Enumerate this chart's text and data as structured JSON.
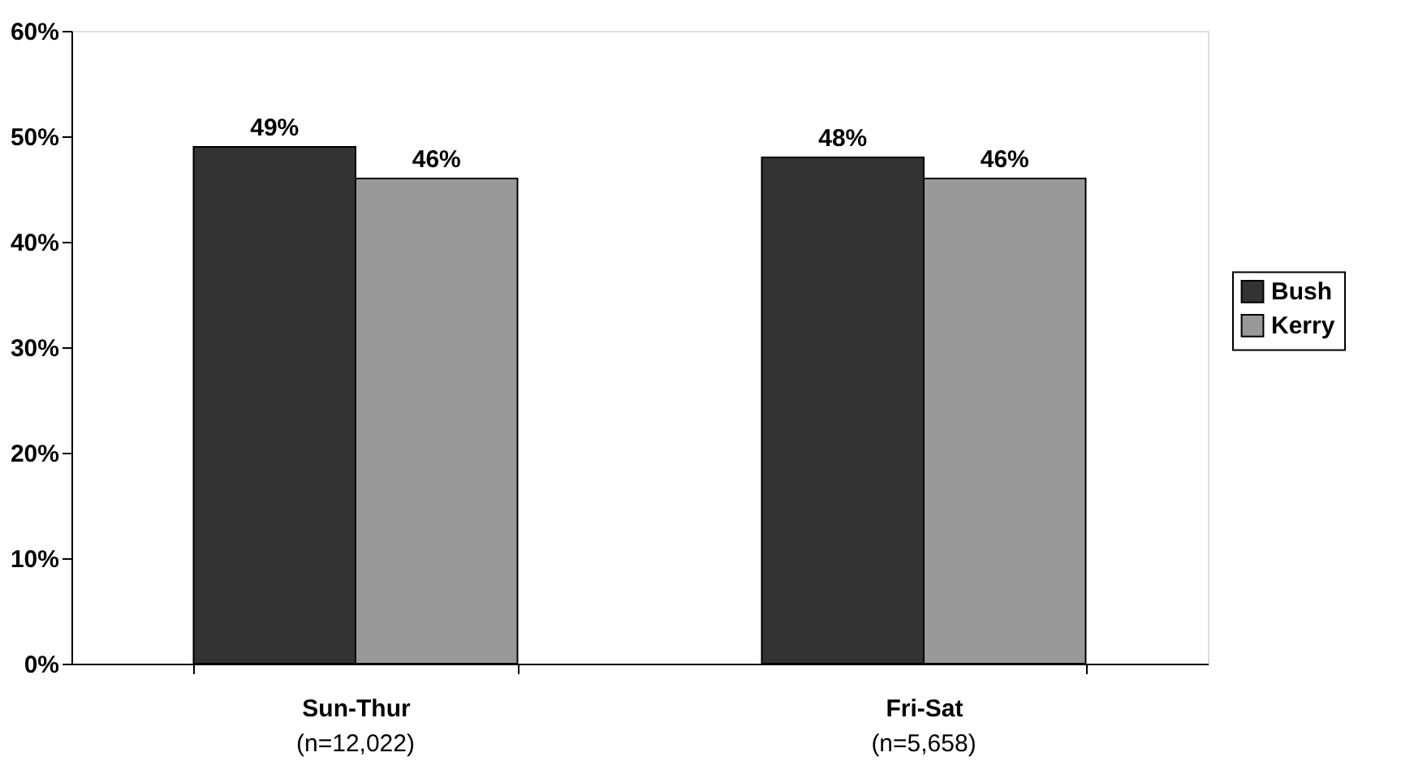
{
  "chart_data": {
    "type": "bar",
    "categories": [
      "Sun-Thur",
      "Fri-Sat"
    ],
    "series": [
      {
        "name": "Bush",
        "color": "#333333",
        "values": [
          49,
          48
        ],
        "value_labels": [
          "49%",
          "48%"
        ]
      },
      {
        "name": "Kerry",
        "color": "#999999",
        "values": [
          46,
          46
        ],
        "value_labels": [
          "46%",
          "46%"
        ]
      }
    ],
    "ylim": [
      0,
      60
    ],
    "yticks": [
      {
        "value": 0,
        "label": "0%"
      },
      {
        "value": 10,
        "label": "10%"
      },
      {
        "value": 20,
        "label": "20%"
      },
      {
        "value": 30,
        "label": "30%"
      },
      {
        "value": 40,
        "label": "40%"
      },
      {
        "value": 50,
        "label": "50%"
      },
      {
        "value": 60,
        "label": "60%"
      }
    ],
    "annotations": [
      "(n=12,022)",
      "(n=5,658)"
    ],
    "grid": false,
    "legend": "right"
  }
}
